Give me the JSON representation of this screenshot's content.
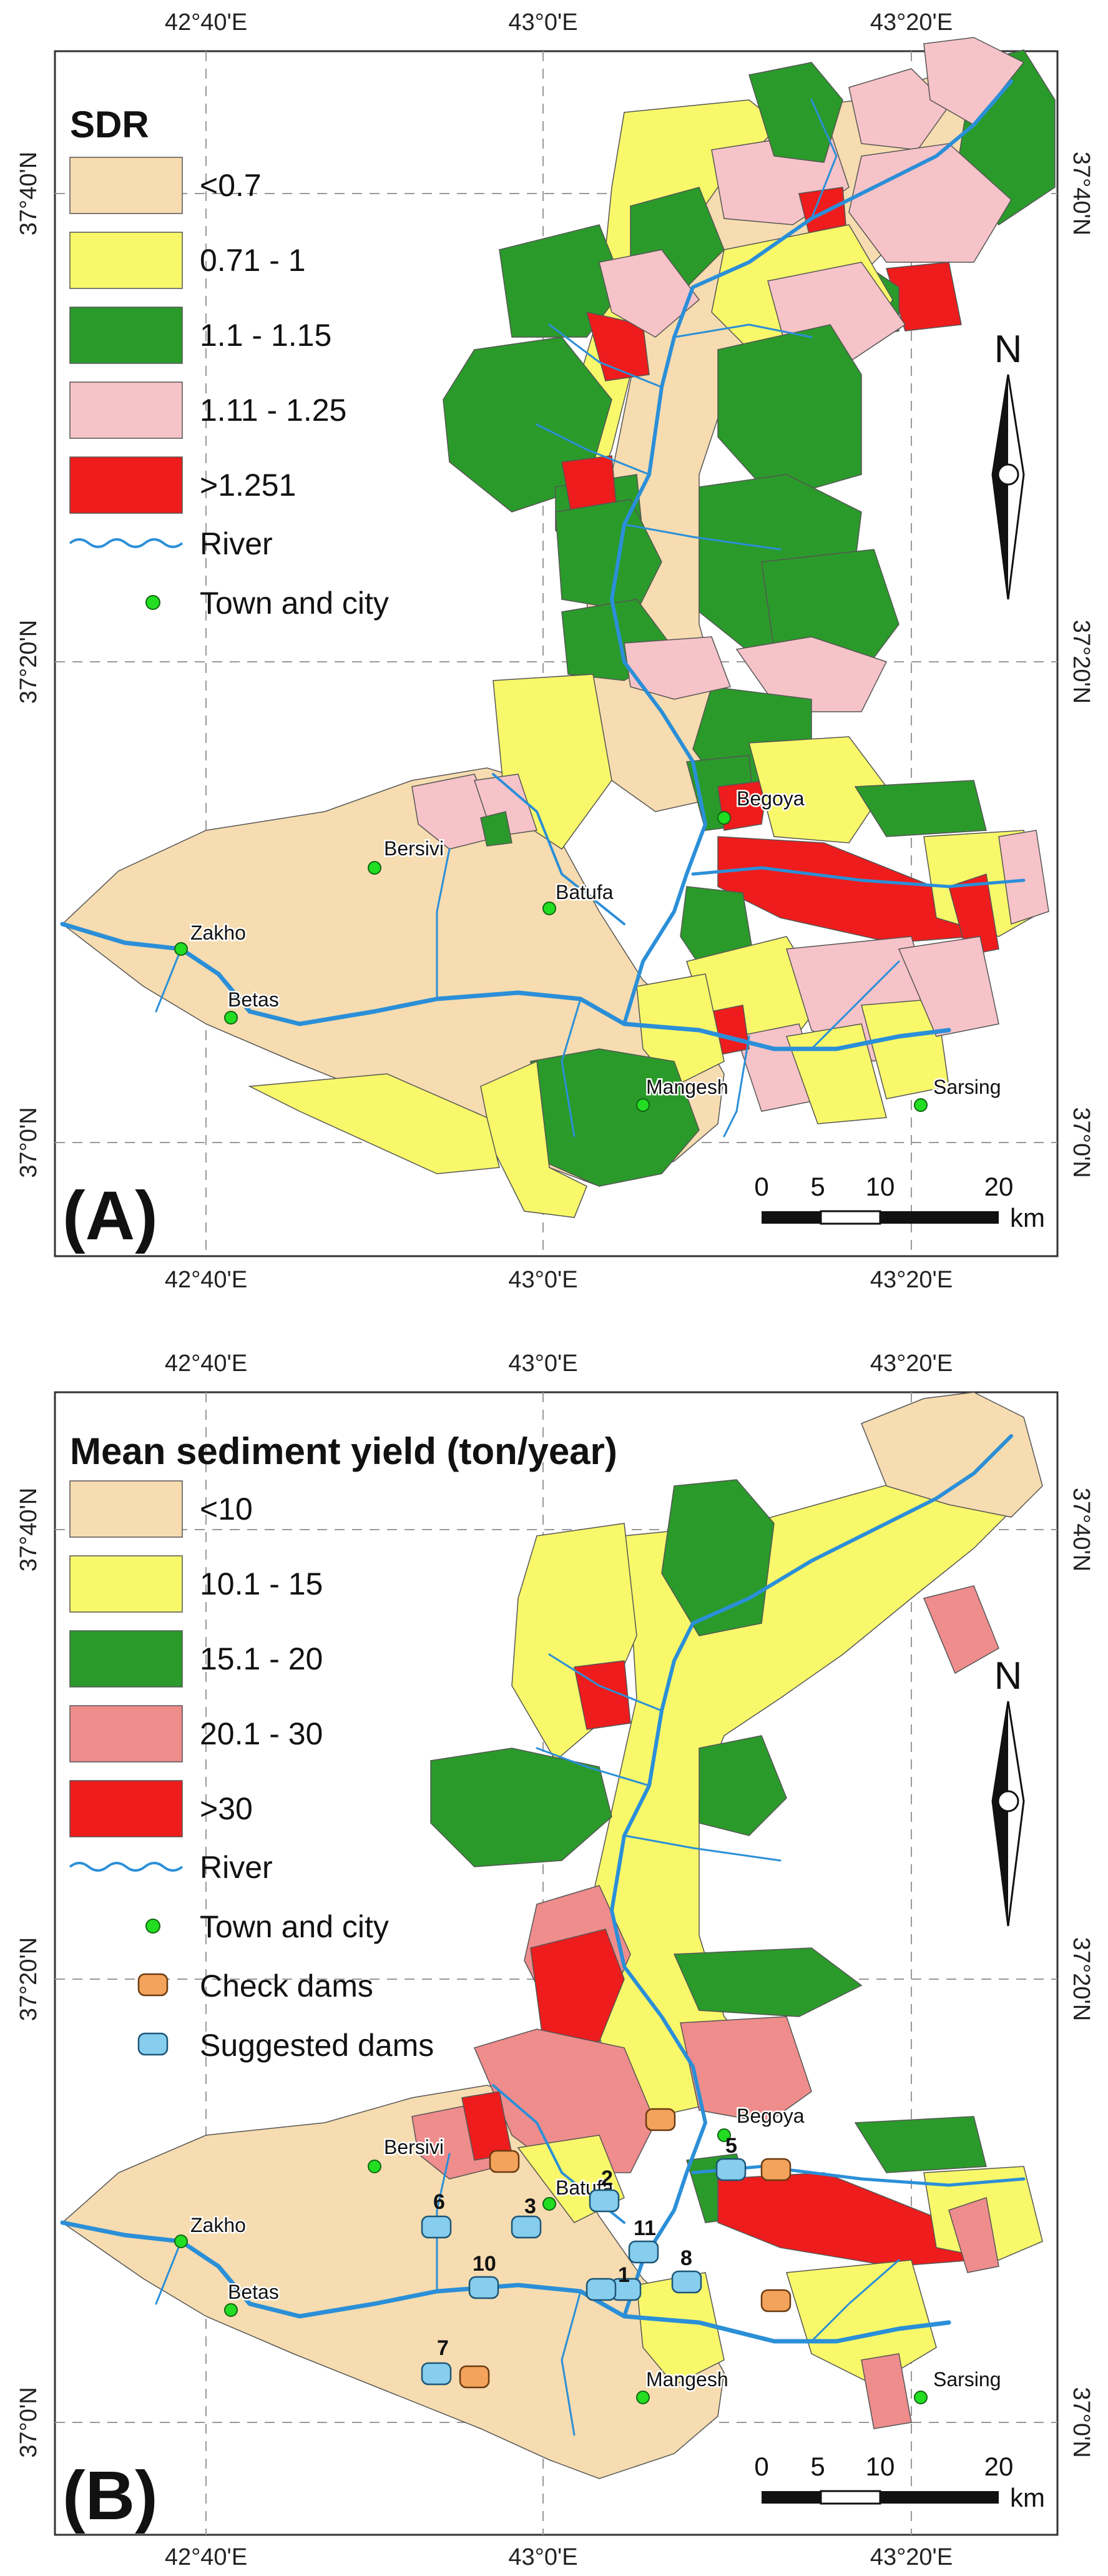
{
  "colors": {
    "tan": "#f6dcb0",
    "yellow": "#f8f86a",
    "green": "#2a9a2a",
    "pink": "#f6c3c8",
    "salmon": "#ef8c8c",
    "red": "#ee1c1c",
    "river": "#2b8fd8",
    "town": "#22dd22",
    "checkdam": "#f3a35c",
    "suggested": "#86cdee"
  },
  "panel_a": {
    "label": "(A)",
    "legend_title": "SDR",
    "legend": [
      {
        "label": "<0.7",
        "color_key": "tan"
      },
      {
        "label": "0.71 - 1",
        "color_key": "yellow"
      },
      {
        "label": "1.1 - 1.15",
        "color_key": "green"
      },
      {
        "label": "1.11 - 1.25",
        "color_key": "pink"
      },
      {
        "label": ">1.251",
        "color_key": "red"
      }
    ],
    "river_label": "River",
    "town_label": "Town and city",
    "top_ticks": [
      "42°40'E",
      "43°0'E",
      "43°20'E"
    ],
    "bottom_ticks": [
      "42°40'E",
      "43°0'E",
      "43°20'E"
    ],
    "left_ticks": [
      "37°40'N",
      "37°20'N",
      "37°0'N"
    ],
    "right_ticks": [
      "37°40'N",
      "37°20'N",
      "37°0'N"
    ],
    "north": "N",
    "scale": {
      "ticks": [
        "0",
        "5",
        "10",
        "20"
      ],
      "unit": "km"
    },
    "towns": [
      "Zakho",
      "Bersivi",
      "Batufa",
      "Betas",
      "Begoya",
      "Mangesh",
      "Sarsing"
    ]
  },
  "panel_b": {
    "label": "(B)",
    "legend_title": "Mean sediment yield (ton/year)",
    "legend": [
      {
        "label": "<10",
        "color_key": "tan"
      },
      {
        "label": "10.1 - 15",
        "color_key": "yellow"
      },
      {
        "label": "15.1 - 20",
        "color_key": "green"
      },
      {
        "label": "20.1 - 30",
        "color_key": "salmon"
      },
      {
        "label": ">30",
        "color_key": "red"
      }
    ],
    "river_label": "River",
    "town_label": "Town and city",
    "checkdam_label": "Check dams",
    "suggested_label": "Suggested dams",
    "top_ticks": [
      "42°40'E",
      "43°0'E",
      "43°20'E"
    ],
    "bottom_ticks": [
      "42°40'E",
      "43°0'E",
      "43°20'E"
    ],
    "left_ticks": [
      "37°40'N",
      "37°20'N",
      "37°0'N"
    ],
    "right_ticks": [
      "37°40'N",
      "37°20'N",
      "37°0'N"
    ],
    "north": "N",
    "scale": {
      "ticks": [
        "0",
        "5",
        "10",
        "20"
      ],
      "unit": "km"
    },
    "towns": [
      "Zakho",
      "Bersivi",
      "Batufa",
      "Betas",
      "Begoya",
      "Mangesh",
      "Sarsing"
    ],
    "dam_numbers": [
      "1",
      "2",
      "3",
      "5",
      "6",
      "7",
      "8",
      "10",
      "11"
    ]
  }
}
